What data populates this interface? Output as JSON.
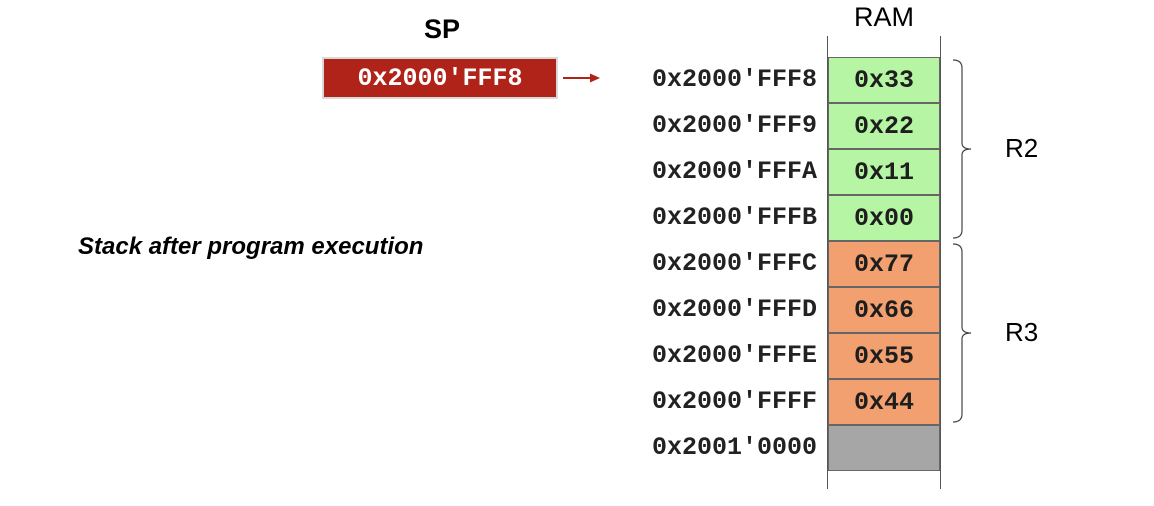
{
  "sp": {
    "label": "SP",
    "value": "0x2000'FFF8",
    "box_color": "#b02318"
  },
  "caption": "Stack after program execution",
  "ram": {
    "title": "RAM",
    "rows": [
      {
        "address": "0x2000'FFF8",
        "value": "0x33",
        "color": "#b6f5a3"
      },
      {
        "address": "0x2000'FFF9",
        "value": "0x22",
        "color": "#b6f5a3"
      },
      {
        "address": "0x2000'FFFA",
        "value": "0x11",
        "color": "#b6f5a3"
      },
      {
        "address": "0x2000'FFFB",
        "value": "0x00",
        "color": "#b6f5a3"
      },
      {
        "address": "0x2000'FFFC",
        "value": "0x77",
        "color": "#f2a070"
      },
      {
        "address": "0x2000'FFFD",
        "value": "0x66",
        "color": "#f2a070"
      },
      {
        "address": "0x2000'FFFE",
        "value": "0x55",
        "color": "#f2a070"
      },
      {
        "address": "0x2000'FFFF",
        "value": "0x44",
        "color": "#f2a070"
      },
      {
        "address": "0x2001'0000",
        "value": "",
        "color": "#a6a6a6"
      }
    ]
  },
  "registers": [
    {
      "name": "R2",
      "first_row": 0,
      "last_row": 3
    },
    {
      "name": "R3",
      "first_row": 4,
      "last_row": 7
    }
  ],
  "arrow_color": "#b02318"
}
